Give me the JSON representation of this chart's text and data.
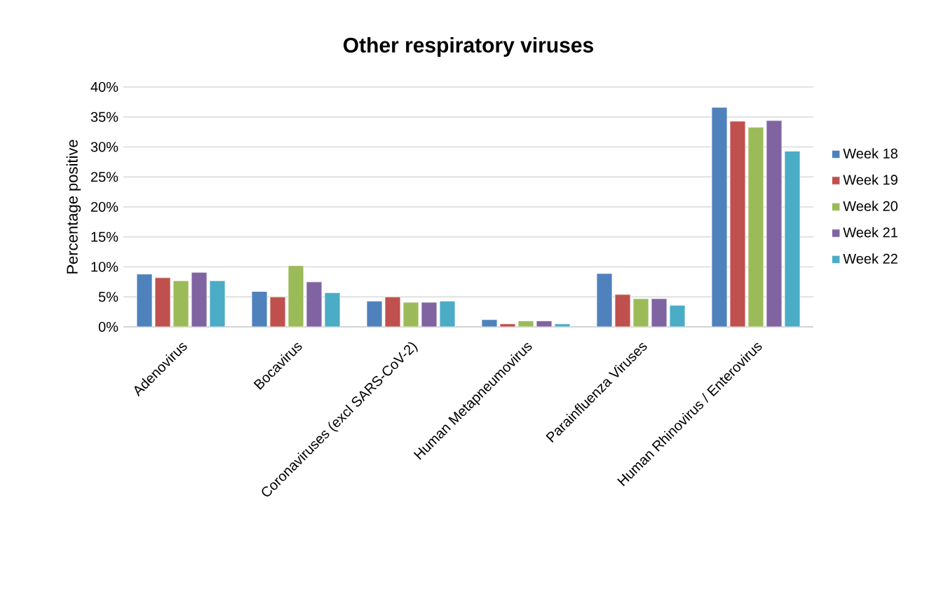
{
  "chart_data": {
    "type": "bar",
    "title": "Other respiratory viruses",
    "ylabel": "Percentage positive",
    "categories": [
      "Adenovirus",
      "Bocavirus",
      "Coronaviruses (excl SARS-CoV-2)",
      "Human Metapneumovirus",
      "Parainfluenza Viruses",
      "Human Rhinovirus / Enterovirus"
    ],
    "series": [
      {
        "name": "Week 18",
        "color": "#4f81bd",
        "values": [
          8.8,
          5.9,
          4.3,
          1.2,
          8.9,
          36.6
        ]
      },
      {
        "name": "Week 19",
        "color": "#c0504d",
        "values": [
          8.2,
          5.0,
          5.0,
          0.5,
          5.4,
          34.3
        ]
      },
      {
        "name": "Week 20",
        "color": "#9bbb59",
        "values": [
          7.7,
          10.2,
          4.1,
          1.0,
          4.7,
          33.3
        ]
      },
      {
        "name": "Week 21",
        "color": "#8064a2",
        "values": [
          9.1,
          7.5,
          4.1,
          1.0,
          4.7,
          34.4
        ]
      },
      {
        "name": "Week 22",
        "color": "#4bacc6",
        "values": [
          7.7,
          5.7,
          4.3,
          0.5,
          3.6,
          29.3
        ]
      }
    ],
    "ylim": [
      0,
      40
    ],
    "yticks": [
      {
        "value": 0,
        "label": "0%"
      },
      {
        "value": 5,
        "label": "5%"
      },
      {
        "value": 10,
        "label": "10%"
      },
      {
        "value": 15,
        "label": "15%"
      },
      {
        "value": 20,
        "label": "20%"
      },
      {
        "value": 25,
        "label": "25%"
      },
      {
        "value": 30,
        "label": "30%"
      },
      {
        "value": 35,
        "label": "35%"
      },
      {
        "value": 40,
        "label": "40%"
      }
    ],
    "grid": "y",
    "legend": "right"
  }
}
